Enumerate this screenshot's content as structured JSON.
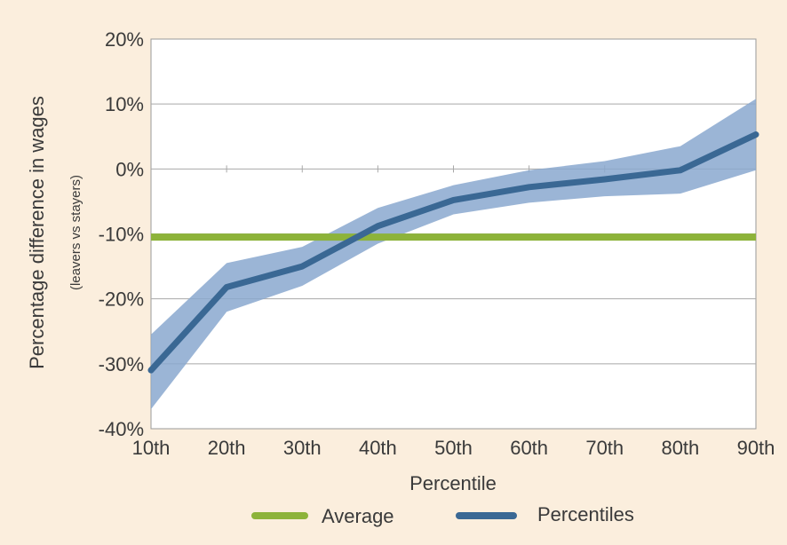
{
  "chart_data": {
    "type": "line",
    "title": "",
    "xlabel": "Percentile",
    "ylabel": "Percentage difference in wages",
    "ylabel_sub": "(leavers vs stayers)",
    "categories": [
      "10th",
      "20th",
      "30th",
      "40th",
      "50th",
      "60th",
      "70th",
      "80th",
      "90th"
    ],
    "y_tick_labels": [
      "20%",
      "10%",
      "0%",
      "-10%",
      "-20%",
      "-30%",
      "-40%"
    ],
    "y_ticks": [
      20,
      10,
      0,
      -10,
      -20,
      -30,
      -40
    ],
    "ylim": [
      -40,
      20
    ],
    "grid": true,
    "legend_position": "bottom",
    "series": [
      {
        "name": "Percentiles",
        "color": "#3a6894",
        "values": [
          -31,
          -18.2,
          -15,
          -8.8,
          -4.8,
          -2.8,
          -1.6,
          -0.2,
          5.3
        ],
        "band_upper": [
          -25.5,
          -14.5,
          -12,
          -6,
          -2.5,
          -0.2,
          1.2,
          3.5,
          10.8
        ],
        "band_lower": [
          -37,
          -22,
          -18,
          -11.5,
          -7,
          -5.2,
          -4.2,
          -3.8,
          -0.2
        ],
        "band_color": "#8aa8cf"
      },
      {
        "name": "Average",
        "color": "#8db33a",
        "values": [
          -10.5,
          -10.5,
          -10.5,
          -10.5,
          -10.5,
          -10.5,
          -10.5,
          -10.5,
          -10.5
        ]
      }
    ],
    "legend": [
      {
        "label": "Average",
        "color": "#8db33a"
      },
      {
        "label": "Percentiles",
        "color": "#3a6894"
      }
    ]
  }
}
